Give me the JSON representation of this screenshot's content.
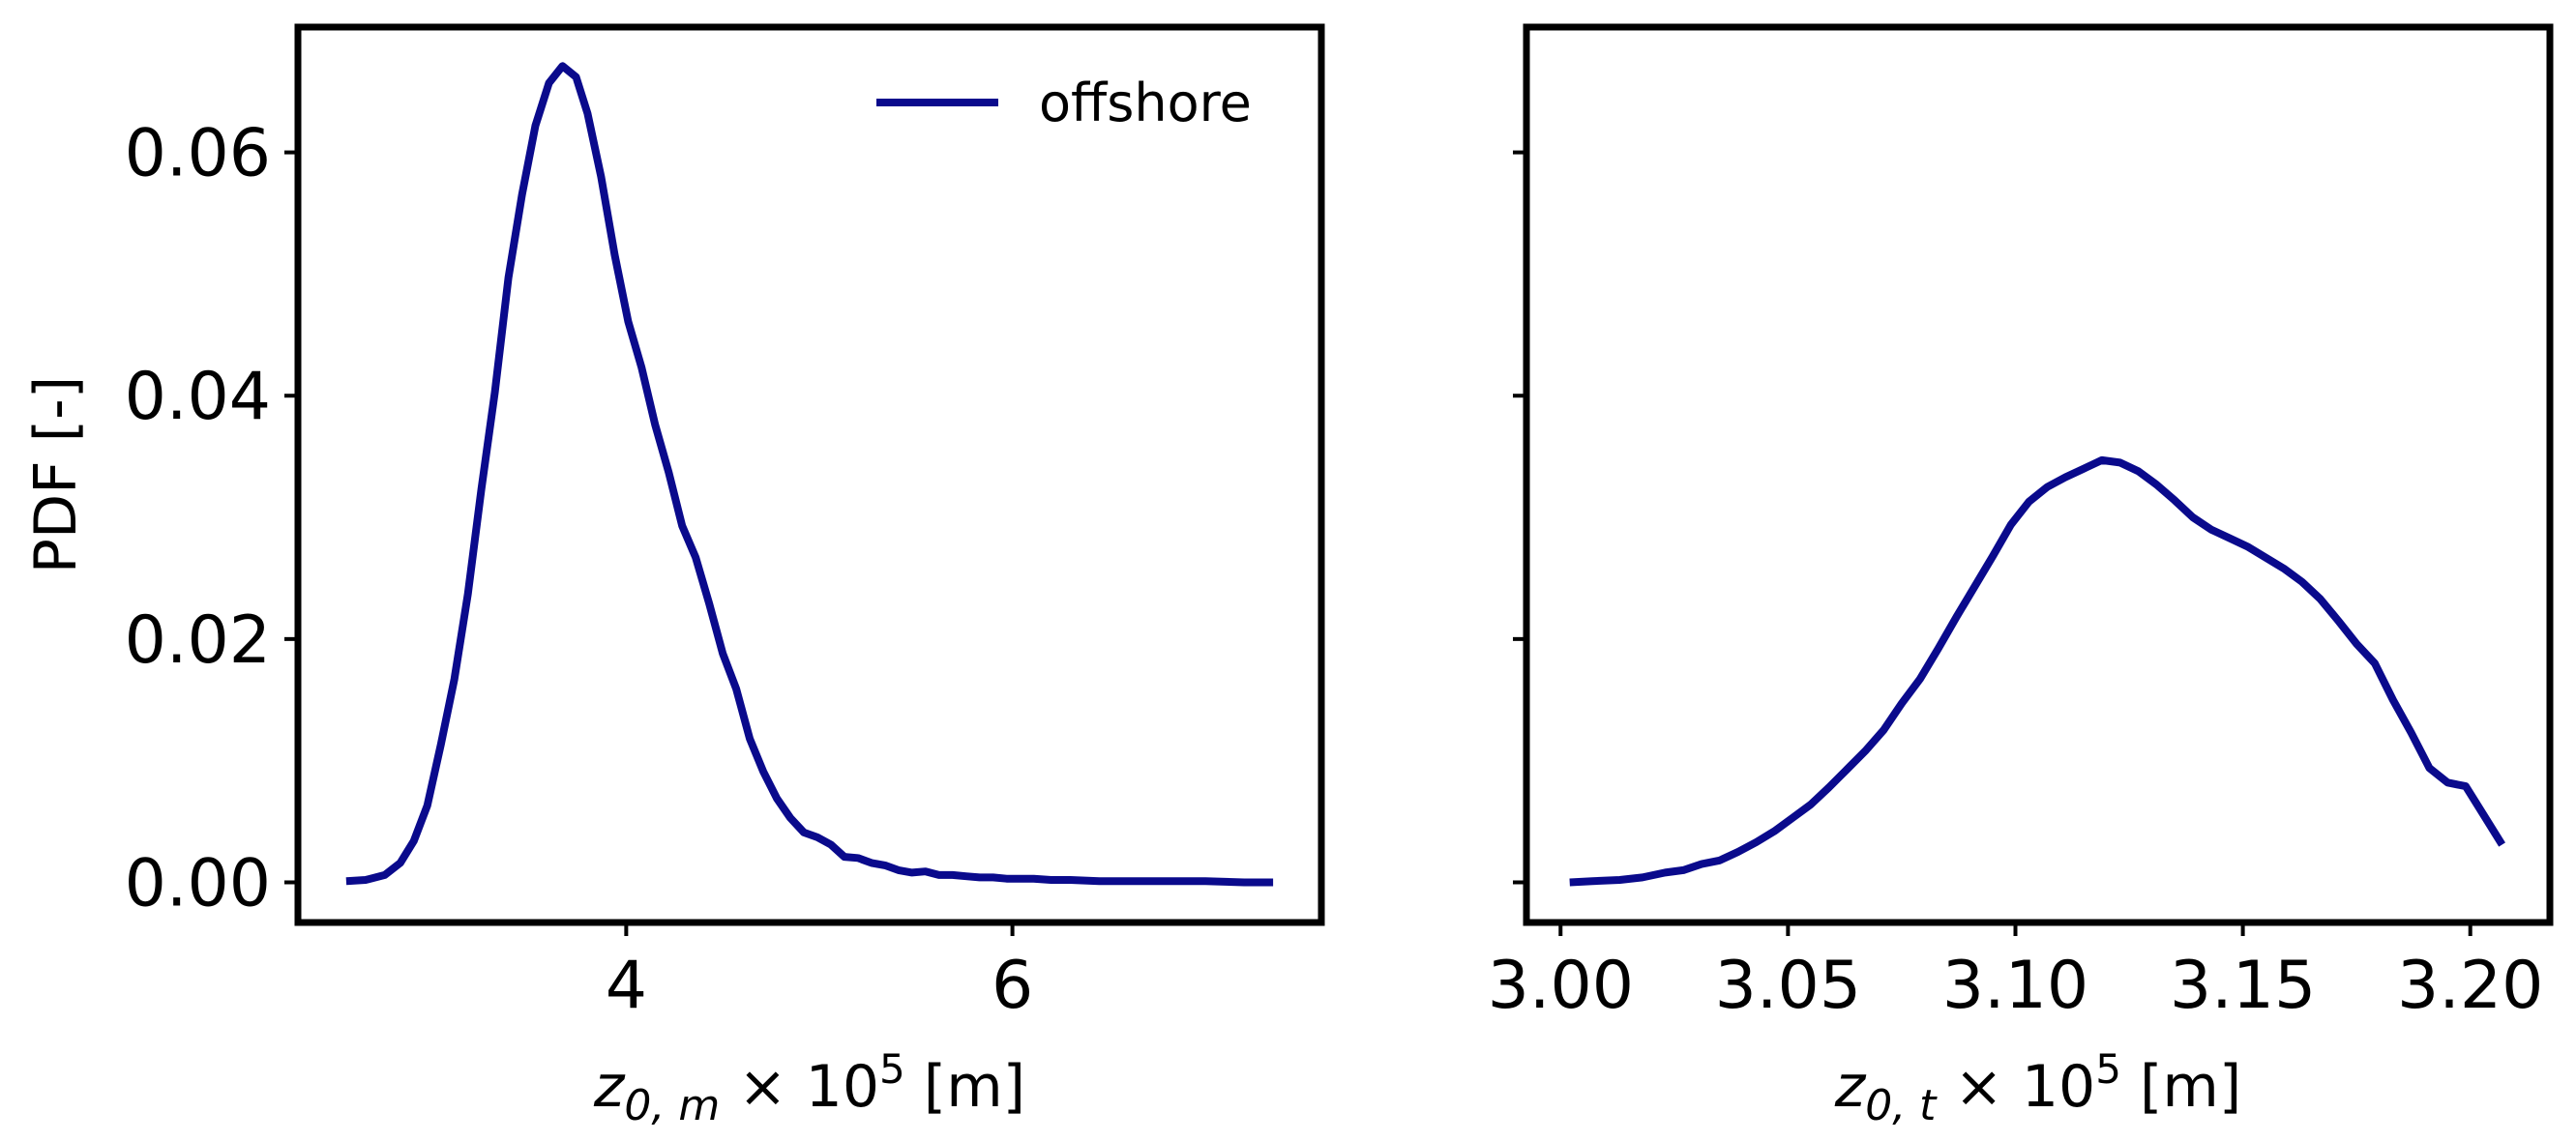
{
  "chart_data": [
    {
      "type": "line",
      "xlabel": {
        "base": "z",
        "sub": "0, m",
        "suffix": " × 10",
        "exp": "5",
        "unit": " [m]"
      },
      "ylabel": "PDF [-]",
      "xlim": [
        2.3,
        7.6
      ],
      "ylim": [
        -0.0033,
        0.0703
      ],
      "xticks": [
        4,
        6
      ],
      "xtick_labels": [
        "4",
        "6"
      ],
      "yticks": [
        0.0,
        0.02,
        0.04,
        0.06
      ],
      "ytick_labels": [
        "0.00",
        "0.02",
        "0.04",
        "0.06"
      ],
      "legend": {
        "position": "top-right",
        "entries": [
          "offshore"
        ]
      },
      "grid": false,
      "series": [
        {
          "name": "offshore",
          "color": "#0a0a8c",
          "x": [
            2.55,
            2.65,
            2.75,
            2.83,
            2.9,
            2.97,
            3.04,
            3.11,
            3.18,
            3.25,
            3.32,
            3.39,
            3.46,
            3.53,
            3.6,
            3.67,
            3.74,
            3.8,
            3.87,
            3.94,
            4.01,
            4.08,
            4.15,
            4.22,
            4.29,
            4.36,
            4.43,
            4.5,
            4.57,
            4.64,
            4.71,
            4.78,
            4.85,
            4.92,
            4.99,
            5.06,
            5.13,
            5.2,
            5.27,
            5.34,
            5.41,
            5.48,
            5.55,
            5.62,
            5.69,
            5.76,
            5.83,
            5.9,
            5.97,
            6.04,
            6.11,
            6.2,
            6.3,
            6.45,
            6.6,
            6.8,
            7.0,
            7.2,
            7.35
          ],
          "y": [
            0.0001,
            0.0002,
            0.0006,
            0.0016,
            0.0034,
            0.0063,
            0.0113,
            0.0167,
            0.0237,
            0.0323,
            0.0403,
            0.0497,
            0.0565,
            0.0622,
            0.0657,
            0.0671,
            0.0662,
            0.0632,
            0.058,
            0.0516,
            0.0461,
            0.0423,
            0.0376,
            0.0337,
            0.0293,
            0.0267,
            0.0229,
            0.0188,
            0.0159,
            0.0118,
            0.0091,
            0.0069,
            0.0053,
            0.0041,
            0.0037,
            0.0031,
            0.0021,
            0.002,
            0.0016,
            0.0014,
            0.001,
            0.0008,
            0.0009,
            0.0006,
            0.0006,
            0.0005,
            0.0004,
            0.0004,
            0.0003,
            0.0003,
            0.0003,
            0.0002,
            0.0002,
            0.0001,
            0.0001,
            0.0001,
            0.0001,
            0.0,
            0.0
          ]
        }
      ]
    },
    {
      "type": "line",
      "xlabel": {
        "base": "z",
        "sub": "0, t",
        "suffix": " × 10",
        "exp": "5",
        "unit": " [m]"
      },
      "ylabel": "",
      "xlim": [
        2.9925,
        3.2175
      ],
      "ylim": [
        -0.0033,
        0.0703
      ],
      "xticks": [
        3.0,
        3.05,
        3.1,
        3.15,
        3.2
      ],
      "xtick_labels": [
        "3.00",
        "3.05",
        "3.10",
        "3.15",
        "3.20"
      ],
      "yticks": [
        0.0,
        0.02,
        0.04,
        0.06
      ],
      "ytick_labels": [
        "",
        "",
        "",
        ""
      ],
      "grid": false,
      "series": [
        {
          "name": "offshore",
          "color": "#0a0a8c",
          "x": [
            3.002,
            3.007,
            3.013,
            3.018,
            3.023,
            3.027,
            3.031,
            3.035,
            3.039,
            3.043,
            3.047,
            3.051,
            3.055,
            3.059,
            3.063,
            3.067,
            3.071,
            3.075,
            3.079,
            3.083,
            3.087,
            3.091,
            3.095,
            3.099,
            3.103,
            3.107,
            3.111,
            3.115,
            3.119,
            3.123,
            3.127,
            3.131,
            3.135,
            3.139,
            3.143,
            3.147,
            3.151,
            3.155,
            3.159,
            3.163,
            3.167,
            3.171,
            3.175,
            3.179,
            3.183,
            3.187,
            3.191,
            3.195,
            3.199,
            3.203,
            3.207
          ],
          "y": [
            0.0,
            0.0001,
            0.0002,
            0.0004,
            0.0008,
            0.001,
            0.0015,
            0.0018,
            0.0025,
            0.0033,
            0.0042,
            0.0053,
            0.0064,
            0.0078,
            0.0093,
            0.0108,
            0.0125,
            0.0147,
            0.0167,
            0.0192,
            0.0218,
            0.0243,
            0.0268,
            0.0294,
            0.0313,
            0.0325,
            0.0333,
            0.034,
            0.0347,
            0.0345,
            0.0338,
            0.0327,
            0.0314,
            0.03,
            0.029,
            0.0283,
            0.0276,
            0.0267,
            0.0258,
            0.0247,
            0.0233,
            0.0215,
            0.0196,
            0.018,
            0.015,
            0.0123,
            0.0094,
            0.0082,
            0.0079,
            0.0055,
            0.0031
          ]
        }
      ]
    }
  ]
}
